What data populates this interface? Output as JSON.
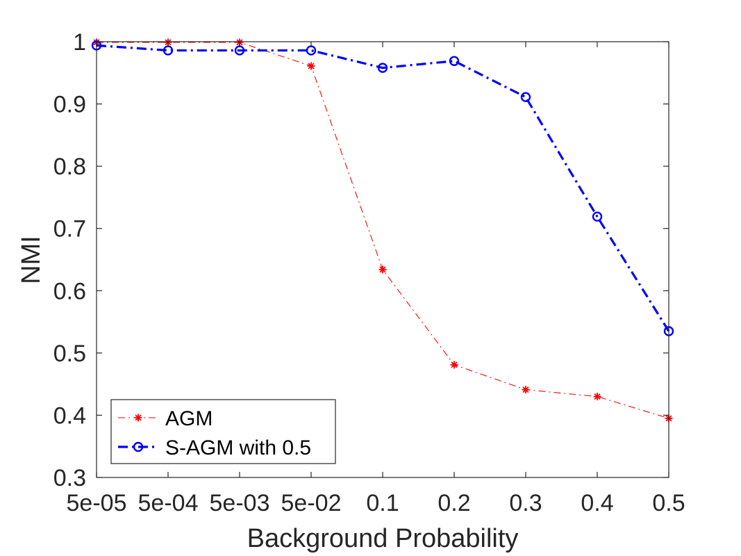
{
  "chart_data": {
    "type": "line",
    "xlabel": "Background Probability",
    "ylabel": "NMI",
    "categories": [
      "5e-05",
      "5e-04",
      "5e-03",
      "5e-02",
      "0.1",
      "0.2",
      "0.3",
      "0.4",
      "0.5"
    ],
    "ylim": [
      0.3,
      1
    ],
    "yticks": [
      "0.3",
      "0.4",
      "0.5",
      "0.6",
      "0.7",
      "0.8",
      "0.9",
      "1"
    ],
    "grid": false,
    "legend_position": "bottom-left",
    "series": [
      {
        "name": "AGM",
        "color": "#ff0000",
        "marker": "asterisk",
        "line_style": "dash-dot",
        "values": [
          0.999,
          0.999,
          0.999,
          0.961,
          0.634,
          0.481,
          0.441,
          0.43,
          0.395
        ]
      },
      {
        "name": "S-AGM with 0.5",
        "color": "#0000ff",
        "marker": "circle",
        "line_style": "dash-dot",
        "values": [
          0.994,
          0.986,
          0.986,
          0.986,
          0.958,
          0.969,
          0.911,
          0.719,
          0.535
        ]
      }
    ]
  }
}
